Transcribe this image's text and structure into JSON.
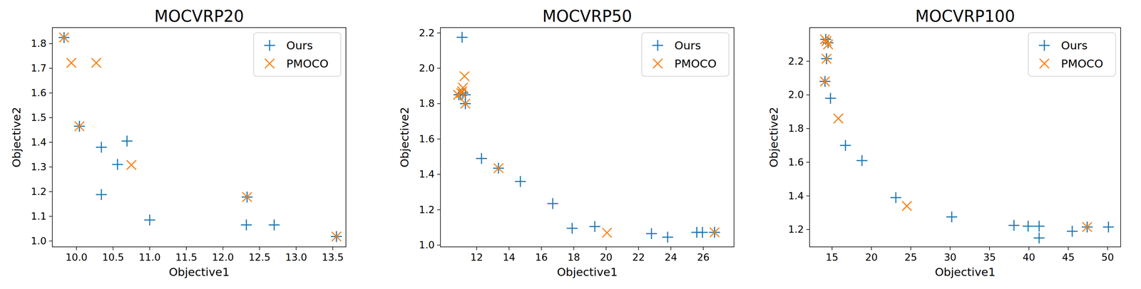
{
  "chart_data": [
    {
      "type": "scatter",
      "title": "MOCVRP20",
      "x_label": "Objective1",
      "y_label": "Objective2",
      "xlim": [
        9.67,
        13.68
      ],
      "ylim": [
        0.976,
        1.865
      ],
      "xticks": [
        {
          "value": 10,
          "label": "10.0"
        },
        10.5,
        {
          "value": 11,
          "label": "11.0"
        },
        11.5,
        {
          "value": 12,
          "label": "12.0"
        },
        12.5,
        {
          "value": 13,
          "label": "13.0"
        },
        13.5
      ],
      "yticks": [
        {
          "value": 1,
          "label": "1.0"
        },
        1.1,
        1.2,
        1.3,
        1.4,
        1.5,
        1.6,
        1.7,
        1.8
      ],
      "legend": "upper right",
      "series": [
        {
          "name": "Ours",
          "color": "#1f77b4",
          "marker": "plus",
          "x": [
            9.83,
            10.04,
            10.34,
            10.34,
            10.56,
            10.69,
            11.0,
            12.33,
            12.32,
            12.7,
            13.55
          ],
          "values": [
            1.825,
            1.465,
            1.38,
            1.188,
            1.31,
            1.405,
            1.085,
            1.178,
            1.065,
            1.065,
            1.018
          ]
        },
        {
          "name": "PMOCO",
          "color": "#ff7f0e",
          "marker": "x",
          "x": [
            9.83,
            9.93,
            10.27,
            10.04,
            10.75,
            12.33,
            13.55
          ],
          "values": [
            1.825,
            1.722,
            1.722,
            1.465,
            1.308,
            1.178,
            1.018
          ]
        }
      ]
    },
    {
      "type": "scatter",
      "title": "MOCVRP50",
      "x_label": "Objective1",
      "y_label": "Objective2",
      "xlim": [
        9.76,
        27.9
      ],
      "ylim": [
        0.99,
        2.23
      ],
      "xticks": [
        12,
        14,
        16,
        18,
        20,
        22,
        24,
        26
      ],
      "yticks": [
        {
          "value": 1,
          "label": "1.0"
        },
        1.2,
        1.4,
        1.6,
        1.8,
        {
          "value": 2,
          "label": "2.0"
        },
        2.2
      ],
      "legend": "upper right",
      "series": [
        {
          "name": "Ours",
          "color": "#1f77b4",
          "marker": "plus",
          "x": [
            11.1,
            10.9,
            11.0,
            11.15,
            11.3,
            11.3,
            12.3,
            13.35,
            14.7,
            16.7,
            17.9,
            19.3,
            22.8,
            23.8,
            25.6,
            25.95,
            26.7
          ],
          "values": [
            2.175,
            1.85,
            1.85,
            1.86,
            1.85,
            1.8,
            1.49,
            1.435,
            1.36,
            1.235,
            1.095,
            1.105,
            1.065,
            1.045,
            1.072,
            1.072,
            1.072
          ]
        },
        {
          "name": "PMOCO",
          "color": "#ff7f0e",
          "marker": "x",
          "x": [
            10.85,
            11.05,
            11.1,
            11.15,
            11.25,
            11.3,
            13.35,
            20.05,
            26.7
          ],
          "values": [
            1.85,
            1.86,
            1.87,
            1.89,
            1.955,
            1.8,
            1.435,
            1.07,
            1.072
          ]
        }
      ]
    },
    {
      "type": "scatter",
      "title": "MOCVRP100",
      "x_label": "Objective1",
      "y_label": "Objective2",
      "xlim": [
        12.15,
        51.65
      ],
      "ylim": [
        1.097,
        2.4
      ],
      "xticks": [
        15,
        20,
        25,
        30,
        35,
        40,
        45,
        50
      ],
      "yticks": [
        1.2,
        1.4,
        1.6,
        1.8,
        {
          "value": 2,
          "label": "2.0"
        },
        2.2
      ],
      "legend": "upper right",
      "series": [
        {
          "name": "Ours",
          "color": "#1f77b4",
          "marker": "plus",
          "x": [
            14.2,
            14.5,
            14.3,
            14.1,
            14.8,
            16.7,
            18.8,
            23.1,
            30.2,
            38.1,
            39.9,
            41.3,
            41.3,
            45.5,
            47.4,
            50.1
          ],
          "values": [
            2.33,
            2.31,
            2.215,
            2.08,
            1.98,
            1.7,
            1.61,
            1.39,
            1.275,
            1.225,
            1.22,
            1.22,
            1.15,
            1.19,
            1.215,
            1.215
          ]
        },
        {
          "name": "PMOCO",
          "color": "#ff7f0e",
          "marker": "x",
          "x": [
            14.1,
            14.3,
            14.5,
            14.3,
            14.1,
            15.8,
            24.5,
            47.4
          ],
          "values": [
            2.33,
            2.32,
            2.3,
            2.215,
            2.08,
            1.86,
            1.34,
            1.215
          ]
        }
      ]
    }
  ]
}
